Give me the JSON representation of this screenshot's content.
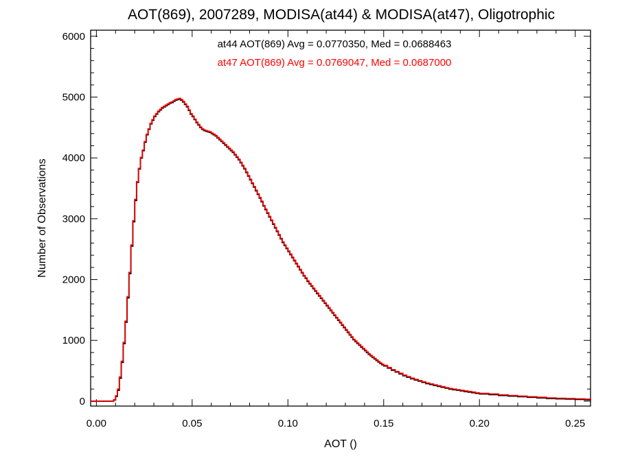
{
  "chart_data": {
    "type": "line",
    "title": "AOT(869), 2007289, MODISA(at44) & MODISA(at47), Oligotrophic",
    "xlabel": "AOT ()",
    "ylabel": "Number of Observations",
    "xlim": [
      -0.003,
      0.258
    ],
    "ylim": [
      -80,
      6100
    ],
    "x_ticks": [
      0.0,
      0.05,
      0.1,
      0.15,
      0.2,
      0.25
    ],
    "x_tick_labels": [
      "0.00",
      "0.05",
      "0.10",
      "0.15",
      "0.20",
      "0.25"
    ],
    "y_ticks": [
      0,
      1000,
      2000,
      3000,
      4000,
      5000,
      6000
    ],
    "y_tick_labels": [
      "0",
      "1000",
      "2000",
      "3000",
      "4000",
      "5000",
      "6000"
    ],
    "grid": false,
    "annotations": [
      {
        "text": "at44 AOT(869) Avg = 0.0770350, Med = 0.0688463",
        "color": "#000000"
      },
      {
        "text": "at47 AOT(869) Avg = 0.0769047, Med = 0.0687000",
        "color": "#ff0000"
      }
    ],
    "series": [
      {
        "color": "#000000",
        "step": true,
        "x": [
          -0.003,
          0.009,
          0.01,
          0.011,
          0.012,
          0.013,
          0.014,
          0.015,
          0.016,
          0.017,
          0.018,
          0.019,
          0.02,
          0.021,
          0.022,
          0.023,
          0.024,
          0.025,
          0.026,
          0.027,
          0.028,
          0.029,
          0.03,
          0.031,
          0.032,
          0.033,
          0.034,
          0.035,
          0.036,
          0.037,
          0.038,
          0.039,
          0.04,
          0.041,
          0.042,
          0.043,
          0.044,
          0.045,
          0.046,
          0.047,
          0.048,
          0.049,
          0.05,
          0.051,
          0.052,
          0.053,
          0.054,
          0.055,
          0.056,
          0.057,
          0.058,
          0.059,
          0.06,
          0.061,
          0.062,
          0.063,
          0.064,
          0.065,
          0.066,
          0.067,
          0.068,
          0.069,
          0.07,
          0.071,
          0.072,
          0.073,
          0.074,
          0.075,
          0.076,
          0.077,
          0.078,
          0.079,
          0.08,
          0.081,
          0.082,
          0.083,
          0.084,
          0.085,
          0.086,
          0.087,
          0.088,
          0.089,
          0.09,
          0.091,
          0.092,
          0.093,
          0.094,
          0.095,
          0.096,
          0.097,
          0.098,
          0.099,
          0.1,
          0.101,
          0.102,
          0.103,
          0.104,
          0.105,
          0.106,
          0.107,
          0.108,
          0.109,
          0.11,
          0.111,
          0.112,
          0.113,
          0.114,
          0.115,
          0.116,
          0.117,
          0.118,
          0.119,
          0.12,
          0.121,
          0.122,
          0.123,
          0.124,
          0.125,
          0.126,
          0.127,
          0.128,
          0.129,
          0.13,
          0.131,
          0.132,
          0.133,
          0.134,
          0.135,
          0.136,
          0.137,
          0.138,
          0.139,
          0.14,
          0.141,
          0.142,
          0.143,
          0.144,
          0.145,
          0.146,
          0.147,
          0.148,
          0.149,
          0.15,
          0.152,
          0.154,
          0.156,
          0.158,
          0.16,
          0.162,
          0.164,
          0.166,
          0.168,
          0.17,
          0.172,
          0.174,
          0.176,
          0.178,
          0.18,
          0.182,
          0.184,
          0.186,
          0.188,
          0.19,
          0.192,
          0.194,
          0.196,
          0.198,
          0.2,
          0.205,
          0.21,
          0.215,
          0.22,
          0.225,
          0.23,
          0.235,
          0.24,
          0.245,
          0.25,
          0.255,
          0.258
        ],
        "values": [
          0,
          20,
          80,
          180,
          380,
          640,
          950,
          1300,
          1700,
          2100,
          2550,
          2950,
          3300,
          3600,
          3820,
          4000,
          4120,
          4260,
          4380,
          4470,
          4560,
          4620,
          4680,
          4720,
          4760,
          4790,
          4820,
          4840,
          4860,
          4880,
          4900,
          4910,
          4930,
          4950,
          4960,
          4970,
          4950,
          4920,
          4880,
          4840,
          4780,
          4720,
          4680,
          4630,
          4580,
          4540,
          4500,
          4470,
          4450,
          4440,
          4430,
          4420,
          4400,
          4380,
          4360,
          4330,
          4300,
          4270,
          4240,
          4210,
          4180,
          4150,
          4120,
          4090,
          4050,
          4010,
          3970,
          3920,
          3870,
          3820,
          3760,
          3700,
          3640,
          3580,
          3520,
          3460,
          3400,
          3340,
          3280,
          3210,
          3150,
          3090,
          3030,
          2970,
          2910,
          2850,
          2790,
          2730,
          2670,
          2610,
          2560,
          2510,
          2460,
          2410,
          2360,
          2310,
          2260,
          2210,
          2160,
          2110,
          2060,
          2020,
          1970,
          1930,
          1890,
          1850,
          1810,
          1770,
          1730,
          1690,
          1650,
          1610,
          1570,
          1530,
          1490,
          1450,
          1410,
          1370,
          1330,
          1290,
          1250,
          1210,
          1170,
          1130,
          1090,
          1050,
          1010,
          980,
          950,
          920,
          890,
          860,
          830,
          800,
          770,
          745,
          720,
          695,
          670,
          645,
          620,
          600,
          580,
          545,
          510,
          480,
          450,
          420,
          395,
          370,
          350,
          330,
          310,
          290,
          275,
          260,
          245,
          230,
          215,
          200,
          190,
          180,
          170,
          160,
          150,
          140,
          130,
          120,
          110,
          95,
          85,
          75,
          65,
          55,
          45,
          40,
          35,
          30,
          25,
          20
        ]
      },
      {
        "color": "#ff0000",
        "step": true,
        "x": [
          -0.003,
          0.009,
          0.01,
          0.011,
          0.012,
          0.013,
          0.014,
          0.015,
          0.016,
          0.017,
          0.018,
          0.019,
          0.02,
          0.021,
          0.022,
          0.023,
          0.024,
          0.025,
          0.026,
          0.027,
          0.028,
          0.029,
          0.03,
          0.031,
          0.032,
          0.033,
          0.034,
          0.035,
          0.036,
          0.037,
          0.038,
          0.039,
          0.04,
          0.041,
          0.042,
          0.043,
          0.044,
          0.045,
          0.046,
          0.047,
          0.048,
          0.049,
          0.05,
          0.051,
          0.052,
          0.053,
          0.054,
          0.055,
          0.056,
          0.057,
          0.058,
          0.059,
          0.06,
          0.061,
          0.062,
          0.063,
          0.064,
          0.065,
          0.066,
          0.067,
          0.068,
          0.069,
          0.07,
          0.071,
          0.072,
          0.073,
          0.074,
          0.075,
          0.076,
          0.077,
          0.078,
          0.079,
          0.08,
          0.081,
          0.082,
          0.083,
          0.084,
          0.085,
          0.086,
          0.087,
          0.088,
          0.089,
          0.09,
          0.091,
          0.092,
          0.093,
          0.094,
          0.095,
          0.096,
          0.097,
          0.098,
          0.099,
          0.1,
          0.101,
          0.102,
          0.103,
          0.104,
          0.105,
          0.106,
          0.107,
          0.108,
          0.109,
          0.11,
          0.111,
          0.112,
          0.113,
          0.114,
          0.115,
          0.116,
          0.117,
          0.118,
          0.119,
          0.12,
          0.121,
          0.122,
          0.123,
          0.124,
          0.125,
          0.126,
          0.127,
          0.128,
          0.129,
          0.13,
          0.131,
          0.132,
          0.133,
          0.134,
          0.135,
          0.136,
          0.137,
          0.138,
          0.139,
          0.14,
          0.141,
          0.142,
          0.143,
          0.144,
          0.145,
          0.146,
          0.147,
          0.148,
          0.149,
          0.15,
          0.152,
          0.154,
          0.156,
          0.158,
          0.16,
          0.162,
          0.164,
          0.166,
          0.168,
          0.17,
          0.172,
          0.174,
          0.176,
          0.178,
          0.18,
          0.182,
          0.184,
          0.186,
          0.188,
          0.19,
          0.192,
          0.194,
          0.196,
          0.198,
          0.2,
          0.205,
          0.21,
          0.215,
          0.22,
          0.225,
          0.23,
          0.235,
          0.24,
          0.245,
          0.25,
          0.255,
          0.258
        ],
        "values": [
          0,
          25,
          90,
          200,
          400,
          660,
          970,
          1320,
          1720,
          2120,
          2570,
          2970,
          3320,
          3610,
          3830,
          4010,
          4130,
          4270,
          4390,
          4480,
          4570,
          4630,
          4690,
          4730,
          4770,
          4800,
          4830,
          4850,
          4870,
          4890,
          4910,
          4920,
          4940,
          4960,
          4970,
          4980,
          4960,
          4930,
          4890,
          4850,
          4790,
          4730,
          4690,
          4640,
          4590,
          4550,
          4510,
          4480,
          4460,
          4450,
          4440,
          4430,
          4410,
          4390,
          4370,
          4340,
          4310,
          4280,
          4250,
          4220,
          4190,
          4160,
          4130,
          4100,
          4060,
          4020,
          3980,
          3930,
          3880,
          3830,
          3770,
          3710,
          3650,
          3590,
          3530,
          3470,
          3410,
          3350,
          3290,
          3220,
          3160,
          3100,
          3040,
          2980,
          2920,
          2860,
          2800,
          2740,
          2680,
          2620,
          2570,
          2520,
          2470,
          2420,
          2370,
          2320,
          2270,
          2220,
          2170,
          2120,
          2070,
          2030,
          1980,
          1940,
          1900,
          1860,
          1820,
          1780,
          1740,
          1700,
          1660,
          1620,
          1580,
          1540,
          1500,
          1460,
          1420,
          1380,
          1340,
          1300,
          1260,
          1220,
          1180,
          1140,
          1100,
          1060,
          1020,
          990,
          960,
          930,
          900,
          870,
          840,
          810,
          780,
          755,
          730,
          705,
          680,
          655,
          630,
          610,
          590,
          555,
          520,
          490,
          460,
          430,
          405,
          380,
          360,
          340,
          320,
          300,
          285,
          270,
          255,
          240,
          225,
          210,
          200,
          190,
          180,
          170,
          160,
          150,
          140,
          130,
          120,
          105,
          95,
          85,
          75,
          65,
          55,
          50,
          45,
          40,
          35,
          30
        ]
      }
    ]
  }
}
